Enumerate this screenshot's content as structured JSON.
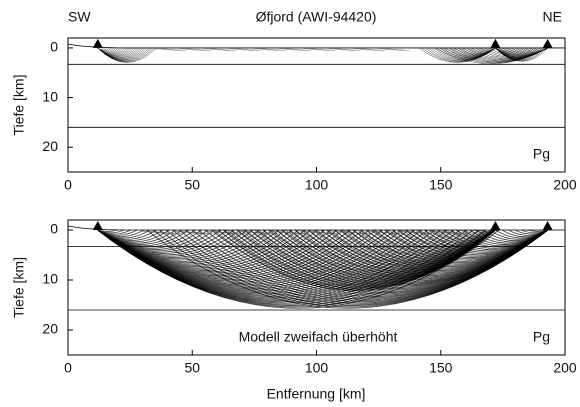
{
  "chart_data": [
    {
      "type": "raypath",
      "title": "Øfjord (AWI-94420)",
      "left_label": "SW",
      "right_label": "NE",
      "phase_label": "Pg",
      "ylabel": "Tiefe [km]",
      "xlim": [
        0,
        200
      ],
      "xticks": [
        0,
        50,
        100,
        150,
        200
      ],
      "ylim": [
        25,
        -2
      ],
      "yticks": [
        0,
        10,
        20
      ],
      "layer_depths": [
        3.3,
        16
      ],
      "stations": {
        "x": [
          12,
          172,
          193
        ],
        "y": [
          0,
          0,
          0
        ]
      }
    },
    {
      "type": "raypath",
      "annotation": "Modell zweifach überhöht",
      "phase_label": "Pg",
      "ylabel": "Tiefe [km]",
      "xlabel": "Entfernung [km]",
      "xlim": [
        0,
        200
      ],
      "xticks": [
        0,
        50,
        100,
        150,
        200
      ],
      "ylim": [
        25,
        -2
      ],
      "yticks": [
        0,
        10,
        20
      ],
      "layer_depths": [
        3.3,
        16
      ],
      "stations": {
        "x": [
          12,
          172,
          193
        ],
        "y": [
          0,
          0,
          0
        ]
      }
    }
  ]
}
